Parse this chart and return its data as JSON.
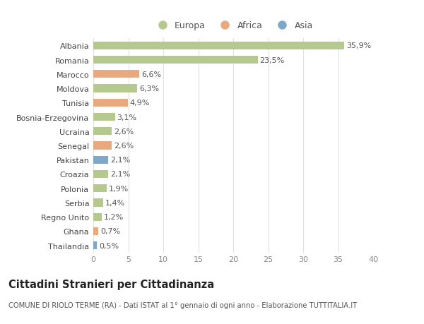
{
  "countries": [
    "Albania",
    "Romania",
    "Marocco",
    "Moldova",
    "Tunisia",
    "Bosnia-Erzegovina",
    "Ucraina",
    "Senegal",
    "Pakistan",
    "Croazia",
    "Polonia",
    "Serbia",
    "Regno Unito",
    "Ghana",
    "Thailandia"
  ],
  "values": [
    35.9,
    23.5,
    6.6,
    6.3,
    4.9,
    3.1,
    2.6,
    2.6,
    2.1,
    2.1,
    1.9,
    1.4,
    1.2,
    0.7,
    0.5
  ],
  "labels": [
    "35,9%",
    "23,5%",
    "6,6%",
    "6,3%",
    "4,9%",
    "3,1%",
    "2,6%",
    "2,6%",
    "2,1%",
    "2,1%",
    "1,9%",
    "1,4%",
    "1,2%",
    "0,7%",
    "0,5%"
  ],
  "continents": [
    "Europa",
    "Europa",
    "Africa",
    "Europa",
    "Africa",
    "Europa",
    "Europa",
    "Africa",
    "Asia",
    "Europa",
    "Europa",
    "Europa",
    "Europa",
    "Africa",
    "Asia"
  ],
  "colors": {
    "Europa": "#b5c98e",
    "Africa": "#e8a97e",
    "Asia": "#7fa7c9"
  },
  "legend_labels": [
    "Europa",
    "Africa",
    "Asia"
  ],
  "xlim": [
    0,
    40
  ],
  "xticks": [
    0,
    5,
    10,
    15,
    20,
    25,
    30,
    35,
    40
  ],
  "title": "Cittadini Stranieri per Cittadinanza",
  "subtitle": "COMUNE DI RIOLO TERME (RA) - Dati ISTAT al 1° gennaio di ogni anno - Elaborazione TUTTITALIA.IT",
  "bg_color": "#ffffff",
  "grid_color": "#e0e0e0",
  "bar_height": 0.55,
  "label_fontsize": 8.0,
  "tick_fontsize": 8.0,
  "title_fontsize": 10.5,
  "subtitle_fontsize": 7.2,
  "legend_fontsize": 9.0
}
